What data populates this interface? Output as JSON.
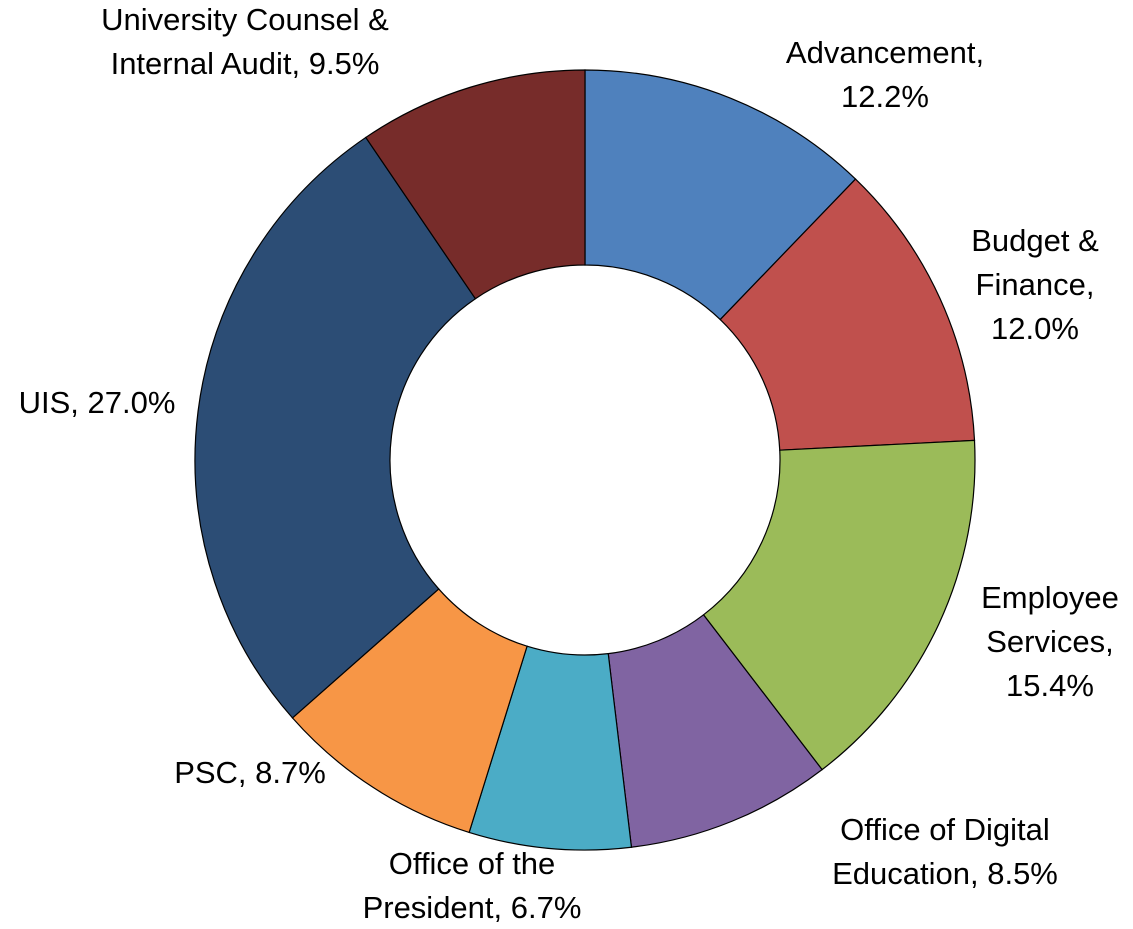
{
  "chart_data": {
    "type": "donut",
    "values": [
      12.2,
      12.0,
      15.4,
      8.5,
      6.7,
      8.7,
      27.0,
      9.5
    ],
    "value_labels": [
      [
        "Advancement,",
        "12.2%"
      ],
      [
        "Budget &",
        "Finance,",
        "12.0%"
      ],
      [
        "Employee",
        "Services,",
        "15.4%"
      ],
      [
        "Office of Digital",
        "Education, 8.5%"
      ],
      [
        "Office of the",
        "President, 6.7%"
      ],
      [
        "PSC, 8.7%"
      ],
      [
        "UIS, 27.0%"
      ],
      [
        "University Counsel &",
        "Internal Audit, 9.5%"
      ]
    ],
    "colors": [
      "#4f81bd",
      "#c0504d",
      "#9bbb59",
      "#8064a2",
      "#4bacc6",
      "#f79646",
      "#2c4d75",
      "#772c2a"
    ]
  }
}
